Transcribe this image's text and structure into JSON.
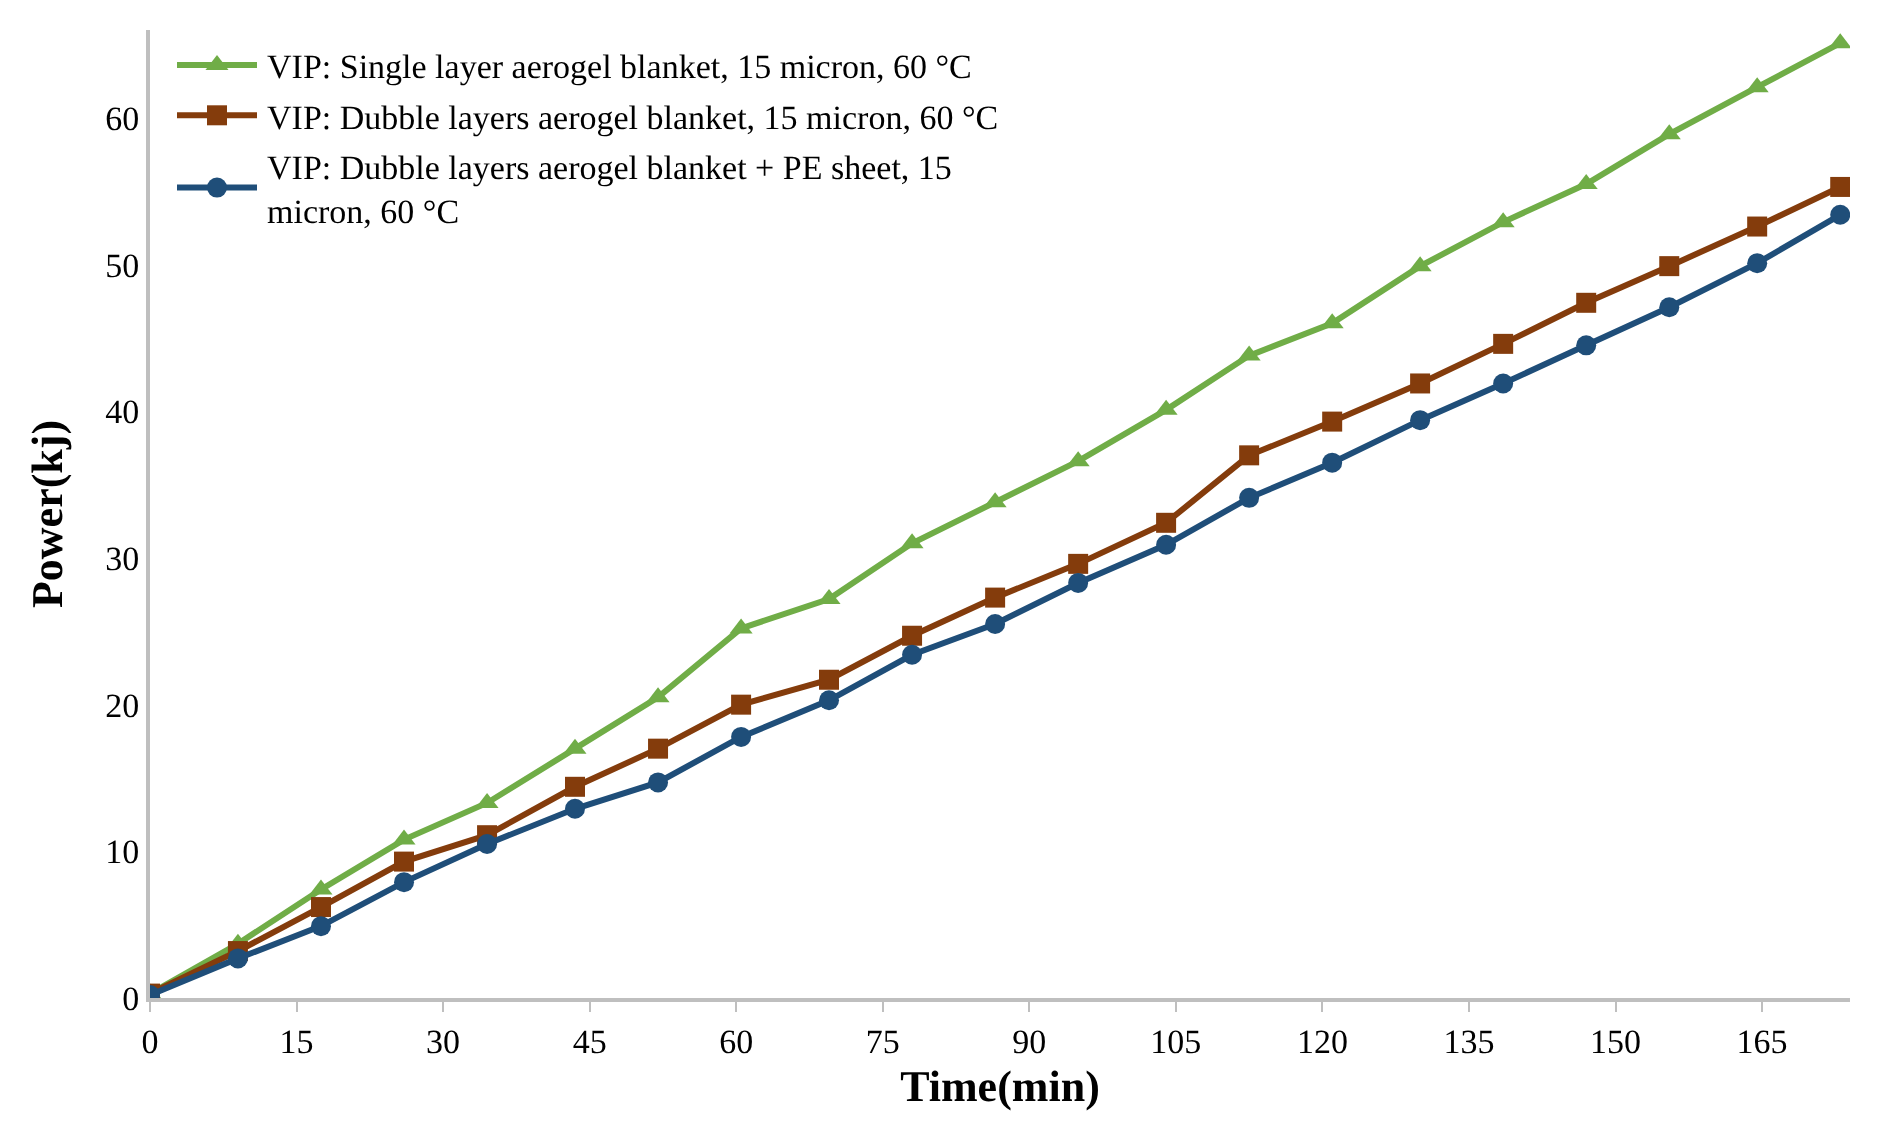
{
  "chart_data": {
    "type": "line",
    "xlabel": "Time(min)",
    "ylabel": "Power(kj)",
    "x": [
      0,
      9,
      17.5,
      26,
      34.5,
      43.5,
      52,
      60.5,
      69.5,
      78,
      86.5,
      95,
      104,
      112.5,
      121,
      130,
      138.5,
      147,
      155.5,
      164.5,
      173
    ],
    "series": [
      {
        "name": "VIP: Single layer aerogel blanket, 15 micron, 60 °C",
        "color": "#70ad47",
        "marker": "triangle",
        "values": [
          0.3,
          3.7,
          7.4,
          10.8,
          13.3,
          17,
          20.5,
          25.2,
          27.2,
          31,
          33.8,
          36.6,
          40.1,
          43.8,
          46,
          49.9,
          52.9,
          55.5,
          58.9,
          62.1,
          65.1
        ]
      },
      {
        "name": "VIP: Dubble layers aerogel blanket, 15 micron, 60 °C",
        "color": "#843c0c",
        "marker": "square",
        "values": [
          0.3,
          3.2,
          6.2,
          9.3,
          11.1,
          14.4,
          17,
          20,
          21.7,
          24.7,
          27.3,
          29.6,
          32.4,
          37,
          39.3,
          41.9,
          44.6,
          47.4,
          49.9,
          52.6,
          55.3
        ]
      },
      {
        "name": "VIP: Dubble layers aerogel blanket + PE sheet, 15\nmicron, 60 °C",
        "color": "#1f4e79",
        "marker": "circle",
        "values": [
          0.2,
          2.7,
          4.9,
          7.9,
          10.5,
          12.9,
          14.7,
          17.8,
          20.3,
          23.4,
          25.5,
          28.3,
          30.9,
          34.1,
          36.5,
          39.4,
          41.9,
          44.5,
          47.1,
          50.1,
          53.4
        ]
      }
    ],
    "xlim": [
      0,
      174
    ],
    "xticks": [
      0,
      15,
      30,
      45,
      60,
      75,
      90,
      105,
      120,
      135,
      150,
      165
    ],
    "ylim": [
      0,
      66
    ],
    "yticks": [
      0,
      10,
      20,
      30,
      40,
      50,
      60
    ],
    "legend": "top left",
    "line_style": "solid"
  }
}
